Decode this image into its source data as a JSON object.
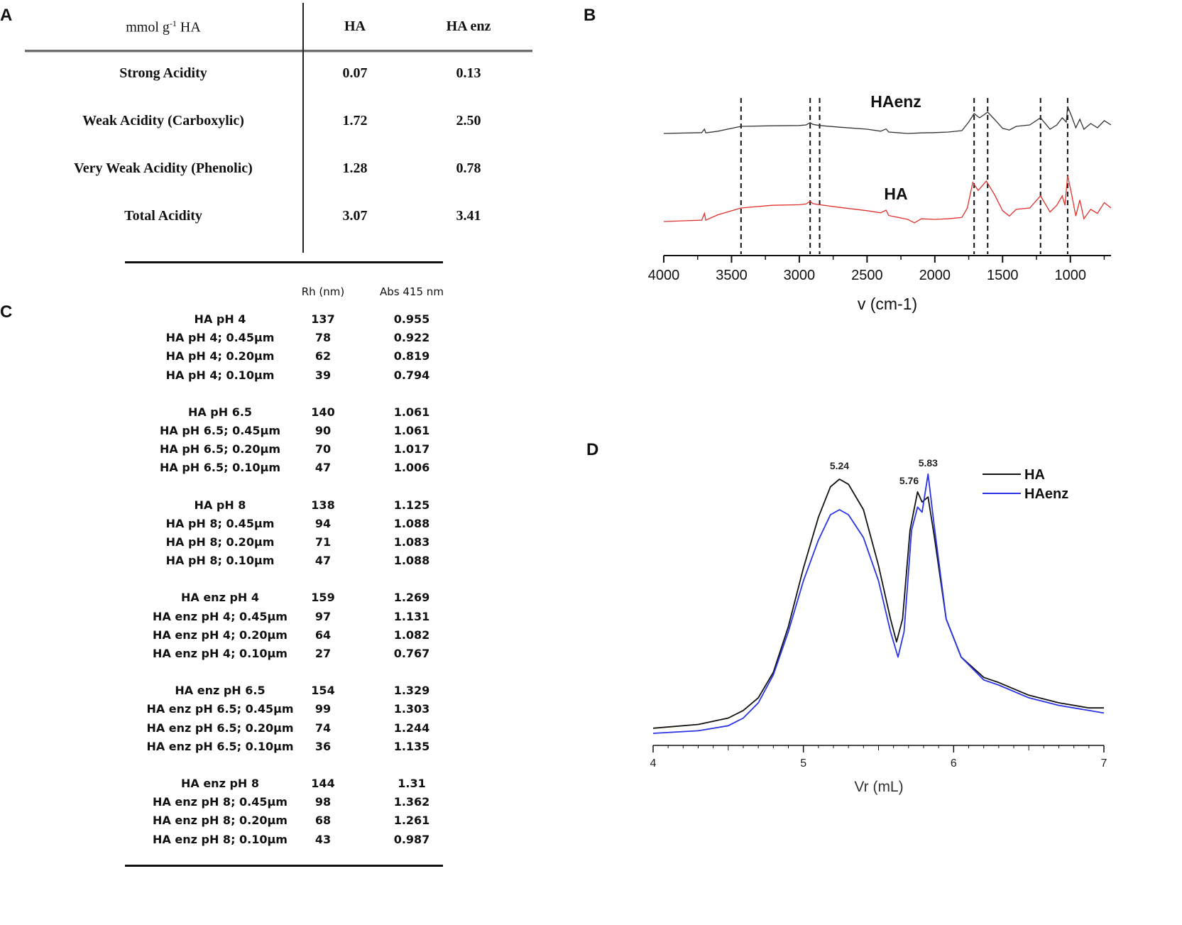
{
  "panels": {
    "a": "A",
    "b": "B",
    "c": "C",
    "d": "D"
  },
  "table_a": {
    "unit_prefix": "mmol g",
    "unit_sup": "-1",
    "unit_suffix": " HA",
    "col_ha": "HA",
    "col_haenz": "HA enz",
    "rows": [
      {
        "label": "Strong Acidity",
        "ha": "0.07",
        "haenz": "0.13"
      },
      {
        "label": "Weak Acidity (Carboxylic)",
        "ha": "1.72",
        "haenz": "2.50"
      },
      {
        "label": "Very Weak Acidity (Phenolic)",
        "ha": "1.28",
        "haenz": "0.78"
      },
      {
        "label": "Total Acidity",
        "ha": "3.07",
        "haenz": "3.41"
      }
    ]
  },
  "table_c": {
    "col_rh": "Rh (nm)",
    "col_abs": "Abs 415 nm",
    "groups": [
      {
        "rows": [
          {
            "name": "HA pH 4",
            "rh": "137",
            "abs": "0.955"
          },
          {
            "name": "HA pH 4; 0.45µm",
            "rh": "78",
            "abs": "0.922"
          },
          {
            "name": "HA pH 4; 0.20µm",
            "rh": "62",
            "abs": "0.819"
          },
          {
            "name": "HA pH 4; 0.10µm",
            "rh": "39",
            "abs": "0.794"
          }
        ]
      },
      {
        "rows": [
          {
            "name": "HA pH 6.5",
            "rh": "140",
            "abs": "1.061"
          },
          {
            "name": "HA pH 6.5; 0.45µm",
            "rh": "90",
            "abs": "1.061"
          },
          {
            "name": "HA pH 6.5; 0.20µm",
            "rh": "70",
            "abs": "1.017"
          },
          {
            "name": "HA pH 6.5; 0.10µm",
            "rh": "47",
            "abs": "1.006"
          }
        ]
      },
      {
        "rows": [
          {
            "name": "HA pH 8",
            "rh": "138",
            "abs": "1.125"
          },
          {
            "name": "HA pH 8; 0.45µm",
            "rh": "94",
            "abs": "1.088"
          },
          {
            "name": "HA pH 8; 0.20µm",
            "rh": "71",
            "abs": "1.083"
          },
          {
            "name": "HA pH 8; 0.10µm",
            "rh": "47",
            "abs": "1.088"
          }
        ]
      },
      {
        "rows": [
          {
            "name": "HA enz pH 4",
            "rh": "159",
            "abs": "1.269"
          },
          {
            "name": "HA enz pH 4; 0.45µm",
            "rh": "97",
            "abs": "1.131"
          },
          {
            "name": "HA enz pH 4; 0.20µm",
            "rh": "64",
            "abs": "1.082"
          },
          {
            "name": "HA enz pH 4; 0.10µm",
            "rh": "27",
            "abs": "0.767"
          }
        ]
      },
      {
        "rows": [
          {
            "name": "HA enz pH 6.5",
            "rh": "154",
            "abs": "1.329"
          },
          {
            "name": "HA enz pH 6.5; 0.45µm",
            "rh": "99",
            "abs": "1.303"
          },
          {
            "name": "HA enz pH 6.5; 0.20µm",
            "rh": "74",
            "abs": "1.244"
          },
          {
            "name": "HA enz pH 6.5; 0.10µm",
            "rh": "36",
            "abs": "1.135"
          }
        ]
      },
      {
        "rows": [
          {
            "name": "HA enz pH 8",
            "rh": "144",
            "abs": "1.31"
          },
          {
            "name": "HA enz pH 8; 0.45µm",
            "rh": "98",
            "abs": "1.362"
          },
          {
            "name": "HA enz pH 8; 0.20µm",
            "rh": "68",
            "abs": "1.261"
          },
          {
            "name": "HA enz pH 8; 0.10µm",
            "rh": "43",
            "abs": "0.987"
          }
        ]
      }
    ]
  },
  "chart_data": [
    {
      "type": "line",
      "panel": "B",
      "title": "",
      "xlabel": "v (cm-1)",
      "ylabel": "",
      "xlim": [
        4000,
        700
      ],
      "xticks": [
        4000,
        3500,
        3000,
        2500,
        2000,
        1500,
        1000
      ],
      "xtick_labels": [
        "4000",
        "3500",
        "3000",
        "2500",
        "2000",
        "1500",
        "1000"
      ],
      "reference_lines": [
        3430,
        2920,
        2850,
        1710,
        1610,
        1220,
        1020
      ],
      "series": [
        {
          "name": "HAenz",
          "color": "#333333",
          "offset": 1.0,
          "points": [
            [
              4000,
              0.0
            ],
            [
              3720,
              0.03
            ],
            [
              3700,
              0.15
            ],
            [
              3690,
              0.02
            ],
            [
              3600,
              0.08
            ],
            [
              3430,
              0.25
            ],
            [
              3200,
              0.27
            ],
            [
              3000,
              0.28
            ],
            [
              2950,
              0.3
            ],
            [
              2920,
              0.38
            ],
            [
              2900,
              0.32
            ],
            [
              2850,
              0.28
            ],
            [
              2700,
              0.22
            ],
            [
              2500,
              0.15
            ],
            [
              2400,
              0.08
            ],
            [
              2360,
              0.16
            ],
            [
              2340,
              0.05
            ],
            [
              2200,
              0.0
            ],
            [
              2100,
              0.02
            ],
            [
              2000,
              0.03
            ],
            [
              1900,
              0.05
            ],
            [
              1800,
              0.1
            ],
            [
              1750,
              0.4
            ],
            [
              1710,
              0.7
            ],
            [
              1670,
              0.55
            ],
            [
              1610,
              0.75
            ],
            [
              1560,
              0.5
            ],
            [
              1500,
              0.18
            ],
            [
              1450,
              0.12
            ],
            [
              1400,
              0.25
            ],
            [
              1300,
              0.3
            ],
            [
              1220,
              0.55
            ],
            [
              1150,
              0.15
            ],
            [
              1100,
              0.3
            ],
            [
              1060,
              0.55
            ],
            [
              1030,
              0.4
            ],
            [
              1020,
              0.95
            ],
            [
              990,
              0.6
            ],
            [
              960,
              0.2
            ],
            [
              930,
              0.5
            ],
            [
              900,
              0.15
            ],
            [
              850,
              0.35
            ],
            [
              800,
              0.2
            ],
            [
              750,
              0.45
            ],
            [
              700,
              0.3
            ]
          ]
        },
        {
          "name": "HA",
          "color": "#e0302b",
          "offset": 0.0,
          "points": [
            [
              4000,
              0.0
            ],
            [
              3720,
              0.05
            ],
            [
              3700,
              0.3
            ],
            [
              3690,
              0.05
            ],
            [
              3600,
              0.25
            ],
            [
              3430,
              0.5
            ],
            [
              3200,
              0.6
            ],
            [
              3000,
              0.62
            ],
            [
              2950,
              0.65
            ],
            [
              2920,
              0.75
            ],
            [
              2900,
              0.66
            ],
            [
              2850,
              0.62
            ],
            [
              2700,
              0.52
            ],
            [
              2500,
              0.4
            ],
            [
              2400,
              0.32
            ],
            [
              2360,
              0.42
            ],
            [
              2340,
              0.22
            ],
            [
              2200,
              0.08
            ],
            [
              2150,
              -0.05
            ],
            [
              2100,
              0.1
            ],
            [
              2000,
              0.08
            ],
            [
              1900,
              0.1
            ],
            [
              1800,
              0.15
            ],
            [
              1760,
              0.5
            ],
            [
              1720,
              1.45
            ],
            [
              1680,
              1.15
            ],
            [
              1620,
              1.5
            ],
            [
              1560,
              1.0
            ],
            [
              1500,
              0.4
            ],
            [
              1450,
              0.2
            ],
            [
              1400,
              0.45
            ],
            [
              1300,
              0.5
            ],
            [
              1220,
              0.95
            ],
            [
              1150,
              0.35
            ],
            [
              1100,
              0.6
            ],
            [
              1060,
              0.95
            ],
            [
              1040,
              0.6
            ],
            [
              1020,
              1.7
            ],
            [
              990,
              1.0
            ],
            [
              960,
              0.2
            ],
            [
              930,
              0.8
            ],
            [
              900,
              0.1
            ],
            [
              850,
              0.45
            ],
            [
              800,
              0.3
            ],
            [
              750,
              0.7
            ],
            [
              700,
              0.5
            ]
          ]
        }
      ],
      "labels": [
        {
          "text": "HAenz",
          "series": "HAenz"
        },
        {
          "text": "HA",
          "series": "HA"
        }
      ]
    },
    {
      "type": "line",
      "panel": "D",
      "title": "",
      "xlabel": "Vr (mL)",
      "ylabel": "",
      "xlim": [
        4,
        7
      ],
      "ylim": [
        0,
        1.05
      ],
      "xticks": [
        4,
        5,
        6,
        7
      ],
      "xtick_labels": [
        "4",
        "5",
        "6",
        "7"
      ],
      "legend": "top-right",
      "peak_annotations": [
        {
          "x": 5.24,
          "label": "5.24"
        },
        {
          "x": 5.76,
          "label": "5.76"
        },
        {
          "x": 5.83,
          "label": "5.83"
        }
      ],
      "series": [
        {
          "name": "HA",
          "color": "#111111",
          "points": [
            [
              4.0,
              0.02
            ],
            [
              4.3,
              0.035
            ],
            [
              4.5,
              0.06
            ],
            [
              4.6,
              0.09
            ],
            [
              4.7,
              0.14
            ],
            [
              4.8,
              0.24
            ],
            [
              4.9,
              0.42
            ],
            [
              5.0,
              0.65
            ],
            [
              5.1,
              0.85
            ],
            [
              5.18,
              0.97
            ],
            [
              5.24,
              1.0
            ],
            [
              5.3,
              0.98
            ],
            [
              5.4,
              0.88
            ],
            [
              5.5,
              0.66
            ],
            [
              5.58,
              0.45
            ],
            [
              5.62,
              0.36
            ],
            [
              5.66,
              0.45
            ],
            [
              5.71,
              0.8
            ],
            [
              5.76,
              0.95
            ],
            [
              5.79,
              0.91
            ],
            [
              5.83,
              0.93
            ],
            [
              5.87,
              0.78
            ],
            [
              5.95,
              0.45
            ],
            [
              6.05,
              0.3
            ],
            [
              6.2,
              0.22
            ],
            [
              6.3,
              0.2
            ],
            [
              6.5,
              0.15
            ],
            [
              6.7,
              0.12
            ],
            [
              6.9,
              0.1
            ],
            [
              7.0,
              0.1
            ]
          ]
        },
        {
          "name": "HAenz",
          "color": "#2a33e6",
          "points": [
            [
              4.0,
              0.0
            ],
            [
              4.3,
              0.01
            ],
            [
              4.5,
              0.03
            ],
            [
              4.6,
              0.06
            ],
            [
              4.7,
              0.12
            ],
            [
              4.8,
              0.23
            ],
            [
              4.9,
              0.4
            ],
            [
              5.0,
              0.6
            ],
            [
              5.1,
              0.76
            ],
            [
              5.18,
              0.86
            ],
            [
              5.24,
              0.88
            ],
            [
              5.3,
              0.86
            ],
            [
              5.4,
              0.77
            ],
            [
              5.5,
              0.6
            ],
            [
              5.58,
              0.4
            ],
            [
              5.63,
              0.3
            ],
            [
              5.67,
              0.4
            ],
            [
              5.72,
              0.8
            ],
            [
              5.76,
              0.89
            ],
            [
              5.79,
              0.87
            ],
            [
              5.83,
              1.02
            ],
            [
              5.87,
              0.82
            ],
            [
              5.95,
              0.45
            ],
            [
              6.05,
              0.3
            ],
            [
              6.2,
              0.21
            ],
            [
              6.3,
              0.19
            ],
            [
              6.5,
              0.14
            ],
            [
              6.7,
              0.11
            ],
            [
              6.9,
              0.09
            ],
            [
              7.0,
              0.08
            ]
          ]
        }
      ]
    }
  ]
}
